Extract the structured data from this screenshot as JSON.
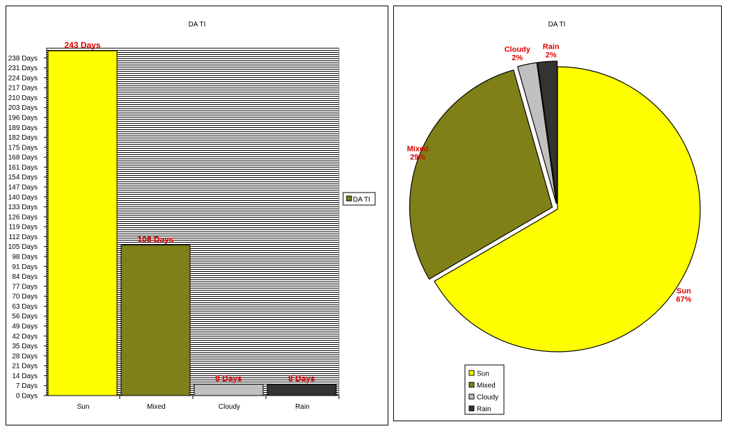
{
  "chart_data": [
    {
      "type": "bar",
      "title": "DA TI",
      "categories": [
        "Sun",
        "Mixed",
        "Cloudy",
        "Rain"
      ],
      "values": [
        243,
        106,
        8,
        8
      ],
      "data_labels": [
        "243 Days",
        "106 Days",
        "8 Days",
        "8 Days"
      ],
      "colors": [
        "#ffff00",
        "#808018",
        "#c0c0c0",
        "#333333"
      ],
      "y_ticks": [
        "0 Days",
        "7 Days",
        "14 Days",
        "21 Days",
        "28 Days",
        "35 Days",
        "42 Days",
        "49 Days",
        "56 Days",
        "63 Days",
        "70 Days",
        "77 Days",
        "84 Days",
        "91 Days",
        "98 Days",
        "105 Days",
        "112 Days",
        "119 Days",
        "126 Days",
        "133 Days",
        "140 Days",
        "147 Days",
        "154 Days",
        "161 Days",
        "168 Days",
        "175 Days",
        "182 Days",
        "189 Days",
        "196 Days",
        "203 Days",
        "210 Days",
        "217 Days",
        "224 Days",
        "231 Days",
        "238 Days"
      ],
      "ylim": [
        0,
        245
      ],
      "grid": true,
      "legend": {
        "position": "right",
        "entries": [
          {
            "name": "DA TI",
            "color": "#808018"
          }
        ]
      }
    },
    {
      "type": "pie",
      "title": "DA TI",
      "categories": [
        "Sun",
        "Mixed",
        "Cloudy",
        "Rain"
      ],
      "values": [
        243,
        106,
        8,
        8
      ],
      "names": [
        "Sun",
        "Mixed",
        "Cloudy",
        "Rain"
      ],
      "percents": [
        "67%",
        "29%",
        "2%",
        "2%"
      ],
      "colors": [
        "#ffff00",
        "#808018",
        "#c0c0c0",
        "#333333"
      ],
      "legend": {
        "position": "bottom-left",
        "entries": [
          "Sun",
          "Mixed",
          "Cloudy",
          "Rain"
        ]
      }
    }
  ]
}
